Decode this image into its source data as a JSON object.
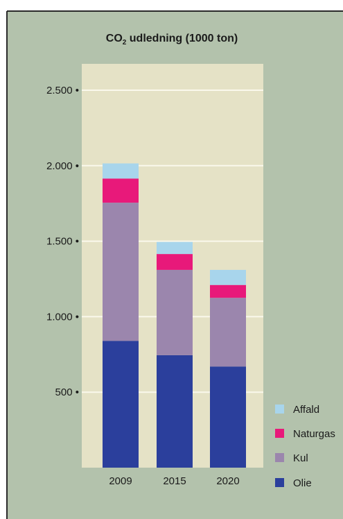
{
  "chart_data": {
    "type": "bar",
    "stacked": true,
    "title_main": "CO",
    "title_subscript": "2",
    "title_rest": " udledning (1000 ton)",
    "categories": [
      "2009",
      "2015",
      "2020"
    ],
    "series": [
      {
        "name": "Olie",
        "color": "#2b3f9c",
        "values": [
          840,
          745,
          670
        ]
      },
      {
        "name": "Kul",
        "color": "#9b86ad",
        "values": [
          915,
          565,
          455
        ]
      },
      {
        "name": "Naturgas",
        "color": "#e8197a",
        "values": [
          160,
          105,
          85
        ]
      },
      {
        "name": "Affald",
        "color": "#a8d5ec",
        "values": [
          100,
          80,
          100
        ]
      }
    ],
    "legend_order": [
      "Affald",
      "Naturgas",
      "Kul",
      "Olie"
    ],
    "y_ticks": [
      {
        "value": 500,
        "label": "500 •"
      },
      {
        "value": 1000,
        "label": "1.000 •"
      },
      {
        "value": 1500,
        "label": "1.500 •"
      },
      {
        "value": 2000,
        "label": "2.000 •"
      },
      {
        "value": 2500,
        "label": "2.500 •"
      }
    ],
    "ylim": [
      0,
      2500
    ],
    "grid": true,
    "legend_position": "bottom-right",
    "colors": {
      "panel": "#b3c2ac",
      "plot": "#e5e2c6",
      "gridline": "#faf8ec",
      "frame": "#2a2a2a"
    }
  }
}
